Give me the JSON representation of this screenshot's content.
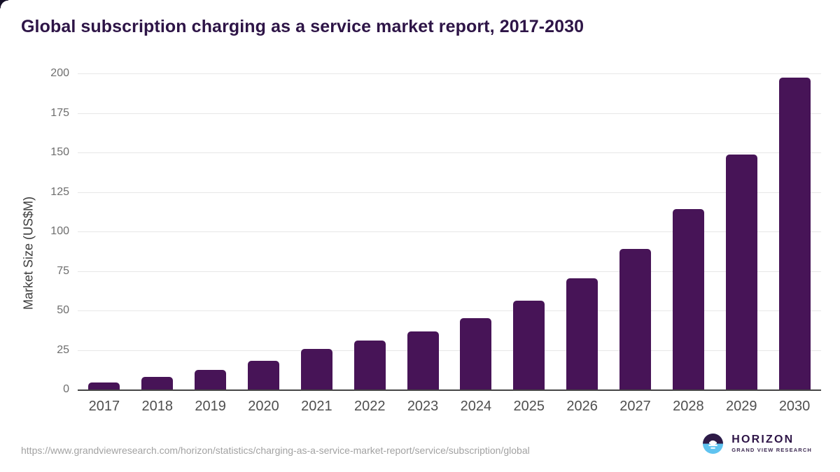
{
  "page": {
    "title": "Global subscription charging as a service market report, 2017-2030",
    "source_url": "https://www.grandviewresearch.com/horizon/statistics/charging-as-a-service-market-report/service/subscription/global"
  },
  "logo": {
    "name": "HORIZON",
    "subtitle": "GRAND VIEW RESEARCH"
  },
  "chart_data": {
    "type": "bar",
    "title": "Global subscription charging as a service market report, 2017-2030",
    "categories": [
      "2017",
      "2018",
      "2019",
      "2020",
      "2021",
      "2022",
      "2023",
      "2024",
      "2025",
      "2026",
      "2027",
      "2028",
      "2029",
      "2030"
    ],
    "values": [
      4.3,
      8.0,
      12.5,
      18.0,
      25.5,
      31.0,
      36.8,
      45.3,
      56.2,
      70.2,
      89.0,
      114.0,
      148.5,
      197.5
    ],
    "xlabel": "",
    "ylabel": "Market Size (US$M)",
    "ylim": [
      0,
      200
    ],
    "yticks": [
      0,
      25,
      50,
      75,
      100,
      125,
      150,
      175,
      200
    ],
    "grid": true,
    "legend": false,
    "bar_color": "#471457",
    "layout": {
      "gridline_color": "#e7e7e7",
      "baseline_color": "#454545"
    }
  },
  "colors": {
    "title": "#2e1547",
    "bar": "#471457",
    "logo_blue": "#5fc3f0",
    "logo_purple": "#2e1a47",
    "url_text": "#a2a2a2"
  }
}
